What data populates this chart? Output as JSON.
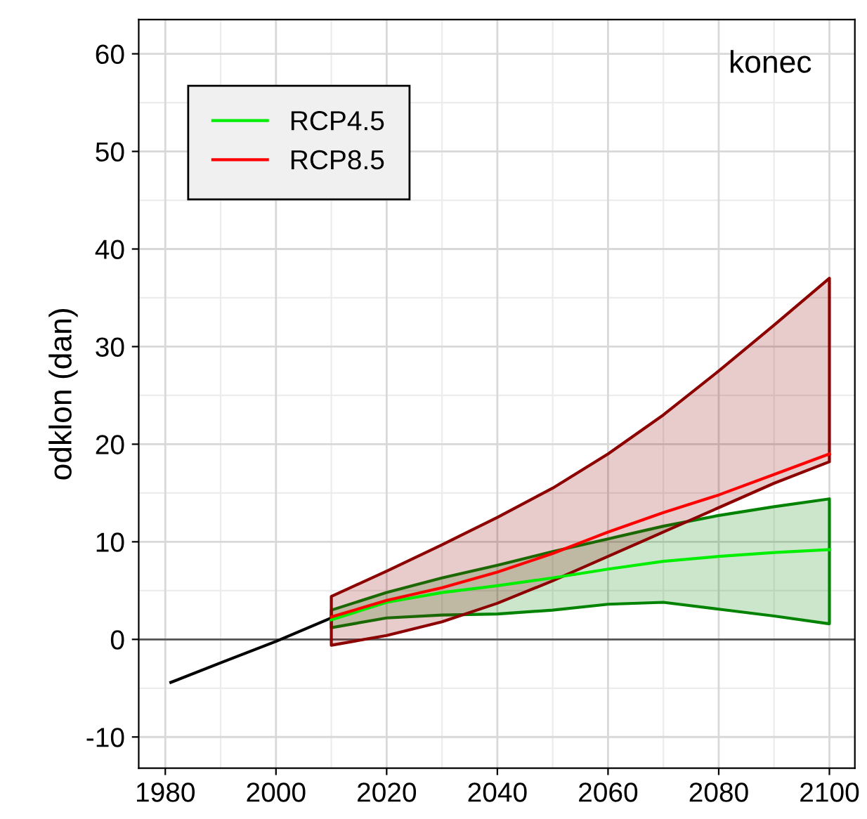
{
  "chart_data": {
    "type": "line",
    "ylabel": "odklon (dan)",
    "annotations": [
      "konec"
    ],
    "xlim": [
      1975.2,
      2104.6
    ],
    "ylim": [
      -13.2,
      63.5
    ],
    "xticks": [
      1980,
      2000,
      2020,
      2040,
      2060,
      2080,
      2100
    ],
    "yticks": [
      -10,
      0,
      10,
      20,
      30,
      40,
      50,
      60
    ],
    "grid": true,
    "legend": "top left",
    "ref_lines": [
      {
        "axis": "y",
        "value": 0,
        "color": "#555555"
      }
    ],
    "series": [
      {
        "color": "#000000",
        "x": [
          1981,
          1990,
          2000,
          2010
        ],
        "values": [
          -4.4,
          -2.4,
          -0.2,
          2.2
        ]
      },
      {
        "name": "RCP4.5",
        "color": "#00ee00",
        "x": [
          2010,
          2020,
          2030,
          2040,
          2050,
          2060,
          2070,
          2080,
          2090,
          2100
        ],
        "values": [
          2.0,
          3.8,
          4.8,
          5.5,
          6.3,
          7.2,
          8.0,
          8.5,
          8.9,
          9.2
        ],
        "lower": [
          1.2,
          2.2,
          2.5,
          2.6,
          3.0,
          3.6,
          3.8,
          3.1,
          2.4,
          1.6
        ],
        "upper": [
          3.0,
          4.8,
          6.3,
          7.6,
          9.0,
          10.3,
          11.6,
          12.7,
          13.6,
          14.4
        ]
      },
      {
        "name": "RCP8.5",
        "color": "#ff0000",
        "x": [
          2010,
          2020,
          2030,
          2040,
          2050,
          2060,
          2070,
          2080,
          2090,
          2100
        ],
        "values": [
          2.3,
          4.0,
          5.3,
          6.9,
          8.8,
          11.0,
          13.0,
          14.8,
          16.9,
          19.0
        ],
        "lower": [
          -0.6,
          0.4,
          1.8,
          3.7,
          6.0,
          8.5,
          11.0,
          13.5,
          16.0,
          18.2
        ],
        "upper": [
          4.4,
          7.0,
          9.7,
          12.5,
          15.5,
          19.0,
          23.0,
          27.5,
          32.2,
          37.0
        ]
      }
    ]
  }
}
